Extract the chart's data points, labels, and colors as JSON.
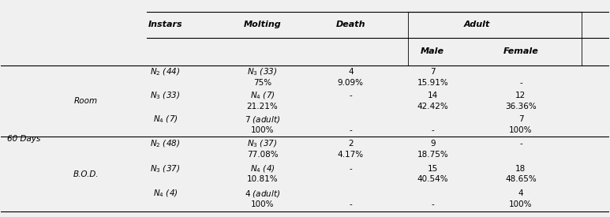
{
  "bg_color": "#f0f0f0",
  "col_headers": [
    "Instars",
    "Molting",
    "Death",
    "Adult"
  ],
  "adult_sub_headers": [
    "Male",
    "Female"
  ],
  "row_label_60days": "60 Days",
  "row_label_room": "Room",
  "row_label_bod": "B.O.D.",
  "rows": [
    {
      "group": "Room",
      "instars_line1": "N₂ (44)",
      "molting_line1": "N₃ (33)",
      "death_line1": "4",
      "male_line1": "7",
      "female_line1": "",
      "instars_line2": "",
      "molting_line2": "75%",
      "death_line2": "9.09%",
      "male_line2": "15.91%",
      "female_line2": "-"
    },
    {
      "group": "Room",
      "instars_line1": "N₃ (33)",
      "molting_line1": "N₄ (7)",
      "death_line1": "-",
      "male_line1": "14",
      "female_line1": "12",
      "instars_line2": "",
      "molting_line2": "21.21%",
      "death_line2": "",
      "male_line2": "42.42%",
      "female_line2": "36.36%"
    },
    {
      "group": "Room",
      "instars_line1": "N₄ (7)",
      "molting_line1": "7 (adult)",
      "death_line1": "",
      "male_line1": "",
      "female_line1": "7",
      "instars_line2": "",
      "molting_line2": "100%",
      "death_line2": "-",
      "male_line2": "-",
      "female_line2": "100%"
    },
    {
      "group": "B.O.D.",
      "instars_line1": "N₂ (48)",
      "molting_line1": "N₃ (37)",
      "death_line1": "2",
      "male_line1": "9",
      "female_line1": "-",
      "instars_line2": "",
      "molting_line2": "77.08%",
      "death_line2": "4.17%",
      "male_line2": "18.75%",
      "female_line2": ""
    },
    {
      "group": "B.O.D.",
      "instars_line1": "N₃ (37)",
      "molting_line1": "N₄ (4)",
      "death_line1": "-",
      "male_line1": "15",
      "female_line1": "18",
      "instars_line2": "",
      "molting_line2": "10.81%",
      "death_line2": "",
      "male_line2": "40.54%",
      "female_line2": "48.65%"
    },
    {
      "group": "B.O.D.",
      "instars_line1": "N₄ (4)",
      "molting_line1": "4 (adult)",
      "death_line1": "",
      "male_line1": "",
      "female_line1": "4",
      "instars_line2": "",
      "molting_line2": "100%",
      "death_line2": "-",
      "male_line2": "-",
      "female_line2": "100%"
    }
  ],
  "font_size": 7.5,
  "header_font_size": 8.0,
  "subscript_font_size": 5.5
}
